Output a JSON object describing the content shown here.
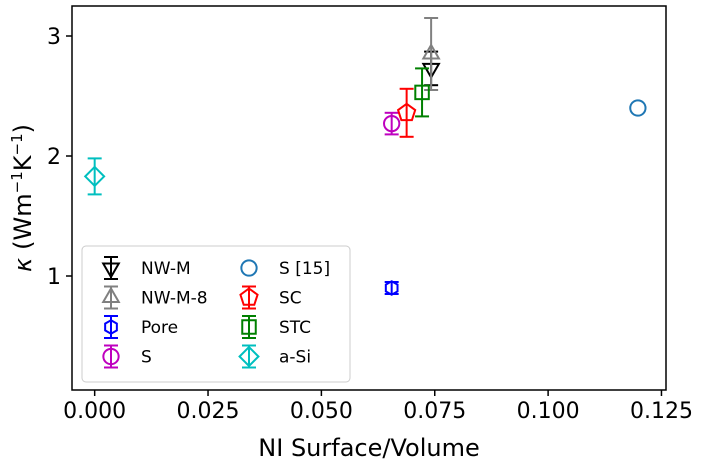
{
  "chart_data": {
    "type": "scatter",
    "xlabel": "NI Surface/Volume",
    "ylabel_symbol": "κ",
    "ylabel_units_open": "(Wm",
    "ylabel_sup1": "−1",
    "ylabel_units_mid": "K",
    "ylabel_sup2": "−1",
    "ylabel_units_close": ")",
    "xlim": [
      -0.005,
      0.126
    ],
    "ylim": [
      0.05,
      3.25
    ],
    "x_ticks": [
      0.0,
      0.025,
      0.05,
      0.075,
      0.1,
      0.125
    ],
    "x_tick_labels": [
      "0.000",
      "0.025",
      "0.050",
      "0.075",
      "0.100",
      "0.125"
    ],
    "y_ticks": [
      1,
      2,
      3
    ],
    "y_tick_labels": [
      "1",
      "2",
      "3"
    ],
    "grid": false,
    "legend_position": "lower-left",
    "series": [
      {
        "name": "NW-M",
        "marker": "triangle-down",
        "color": "#000000",
        "x": 0.0742,
        "y": 2.73,
        "yerr": 0.14
      },
      {
        "name": "NW-M-8",
        "marker": "triangle-up",
        "color": "#808080",
        "x": 0.0742,
        "y": 2.85,
        "yerr": 0.3
      },
      {
        "name": "Pore",
        "marker": "hexagon",
        "color": "#0000ff",
        "x": 0.0655,
        "y": 0.9,
        "yerr": 0.05
      },
      {
        "name": "S",
        "marker": "circle",
        "color": "#bf00bf",
        "x": 0.0655,
        "y": 2.27,
        "yerr": 0.09
      },
      {
        "name": "S [15]",
        "marker": "circle-open",
        "color": "#1f77b4",
        "x": 0.1198,
        "y": 2.4,
        "yerr": 0
      },
      {
        "name": "SC",
        "marker": "pentagon",
        "color": "#ff0000",
        "x": 0.0688,
        "y": 2.36,
        "yerr": 0.2
      },
      {
        "name": "STC",
        "marker": "square",
        "color": "#008000",
        "x": 0.0722,
        "y": 2.53,
        "yerr": 0.2
      },
      {
        "name": "a-Si",
        "marker": "diamond",
        "color": "#00bfbf",
        "x": 0.0,
        "y": 1.83,
        "yerr": 0.15
      }
    ]
  }
}
